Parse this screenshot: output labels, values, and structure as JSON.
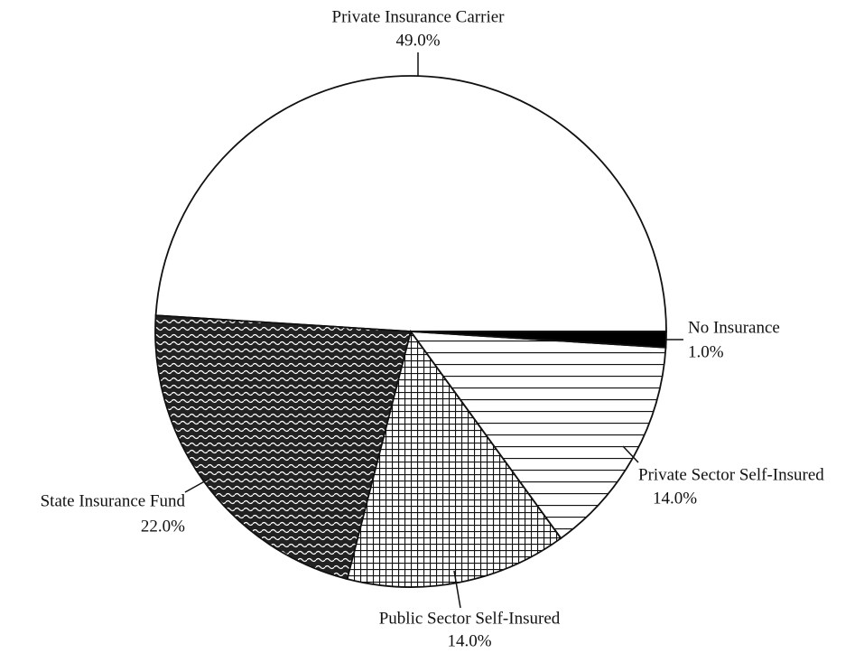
{
  "chart_data": {
    "type": "pie",
    "categories": [
      "Private Insurance Carrier",
      "State Insurance Fund",
      "Public Sector Self-Insured",
      "Private Sector Self-Insured",
      "No Insurance"
    ],
    "values": [
      49.0,
      22.0,
      14.0,
      14.0,
      1.0
    ],
    "value_labels": [
      "49.0%",
      "22.0%",
      "14.0%",
      "14.0%",
      "1.0%"
    ],
    "fills": [
      "white",
      "wave",
      "grid",
      "hlines",
      "black"
    ]
  }
}
